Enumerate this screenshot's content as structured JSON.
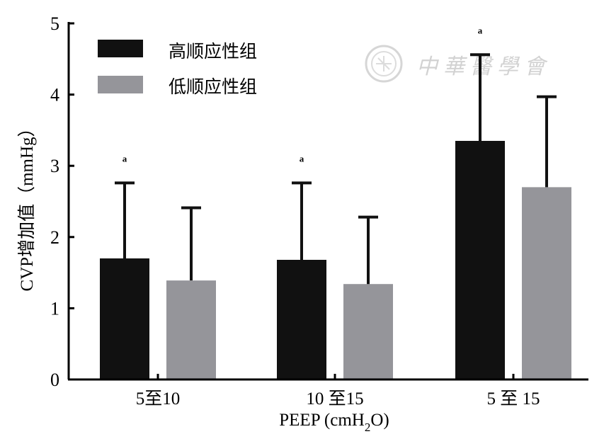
{
  "chart_data": {
    "type": "bar",
    "categories": [
      "5至10",
      "10 至15",
      "5 至 15"
    ],
    "series": [
      {
        "name": "高顺应性组",
        "values": [
          1.7,
          1.68,
          3.35
        ],
        "errors": [
          1.06,
          1.08,
          1.21
        ],
        "color": "#111111"
      },
      {
        "name": "低顺应性组",
        "values": [
          1.39,
          1.34,
          2.7
        ],
        "errors": [
          1.02,
          0.94,
          1.27
        ],
        "color": "#95959a"
      }
    ],
    "significance_marks": [
      "a",
      "a",
      "a"
    ],
    "xlabel": {
      "main": "PEEP (cmH",
      "sub": "2",
      "tail": "O)"
    },
    "ylabel": "CVP增加值（mmHg）",
    "ylim": [
      0,
      5
    ],
    "yticks": [
      "0",
      "1",
      "2",
      "3",
      "4",
      "5"
    ],
    "grid": false,
    "legend_position": "top-left"
  },
  "watermark": {
    "text": "中華醫學會"
  }
}
